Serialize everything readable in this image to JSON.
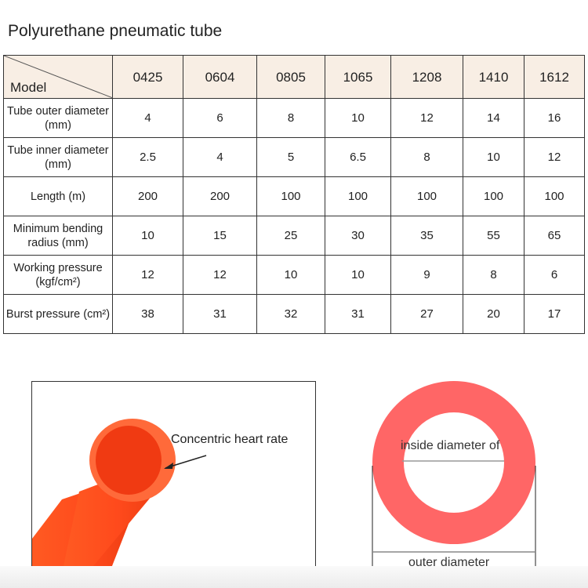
{
  "title": "Polyurethane pneumatic tube",
  "table": {
    "corner_label": "Model",
    "models": [
      "0425",
      "0604",
      "0805",
      "1065",
      "1208",
      "1410",
      "1612"
    ],
    "rows": [
      {
        "label": [
          "Tube outer diameter",
          "(mm)"
        ],
        "values": [
          "4",
          "6",
          "8",
          "10",
          "12",
          "14",
          "16"
        ]
      },
      {
        "label": [
          "Tube inner diameter",
          "(mm)"
        ],
        "values": [
          "2.5",
          "4",
          "5",
          "6.5",
          "8",
          "10",
          "12"
        ]
      },
      {
        "label": [
          "Length (m)"
        ],
        "values": [
          "200",
          "200",
          "100",
          "100",
          "100",
          "100",
          "100"
        ]
      },
      {
        "label": [
          "Minimum bending",
          "radius (mm)"
        ],
        "values": [
          "10",
          "15",
          "25",
          "30",
          "35",
          "55",
          "65"
        ]
      },
      {
        "label": [
          "Working pressure",
          "(kgf/cm²)"
        ],
        "values": [
          "12",
          "12",
          "10",
          "10",
          "9",
          "8",
          "6"
        ]
      },
      {
        "label": [
          "Burst pressure (cm²)"
        ],
        "values": [
          "38",
          "31",
          "32",
          "31",
          "27",
          "20",
          "17"
        ]
      }
    ]
  },
  "photo": {
    "annotation": "Concentric heart rate",
    "tube_color": "#ff4a1c"
  },
  "diagram": {
    "inside_label": "inside diameter of",
    "outside_label": "outer diameter",
    "ring_color": "#ff6666"
  }
}
